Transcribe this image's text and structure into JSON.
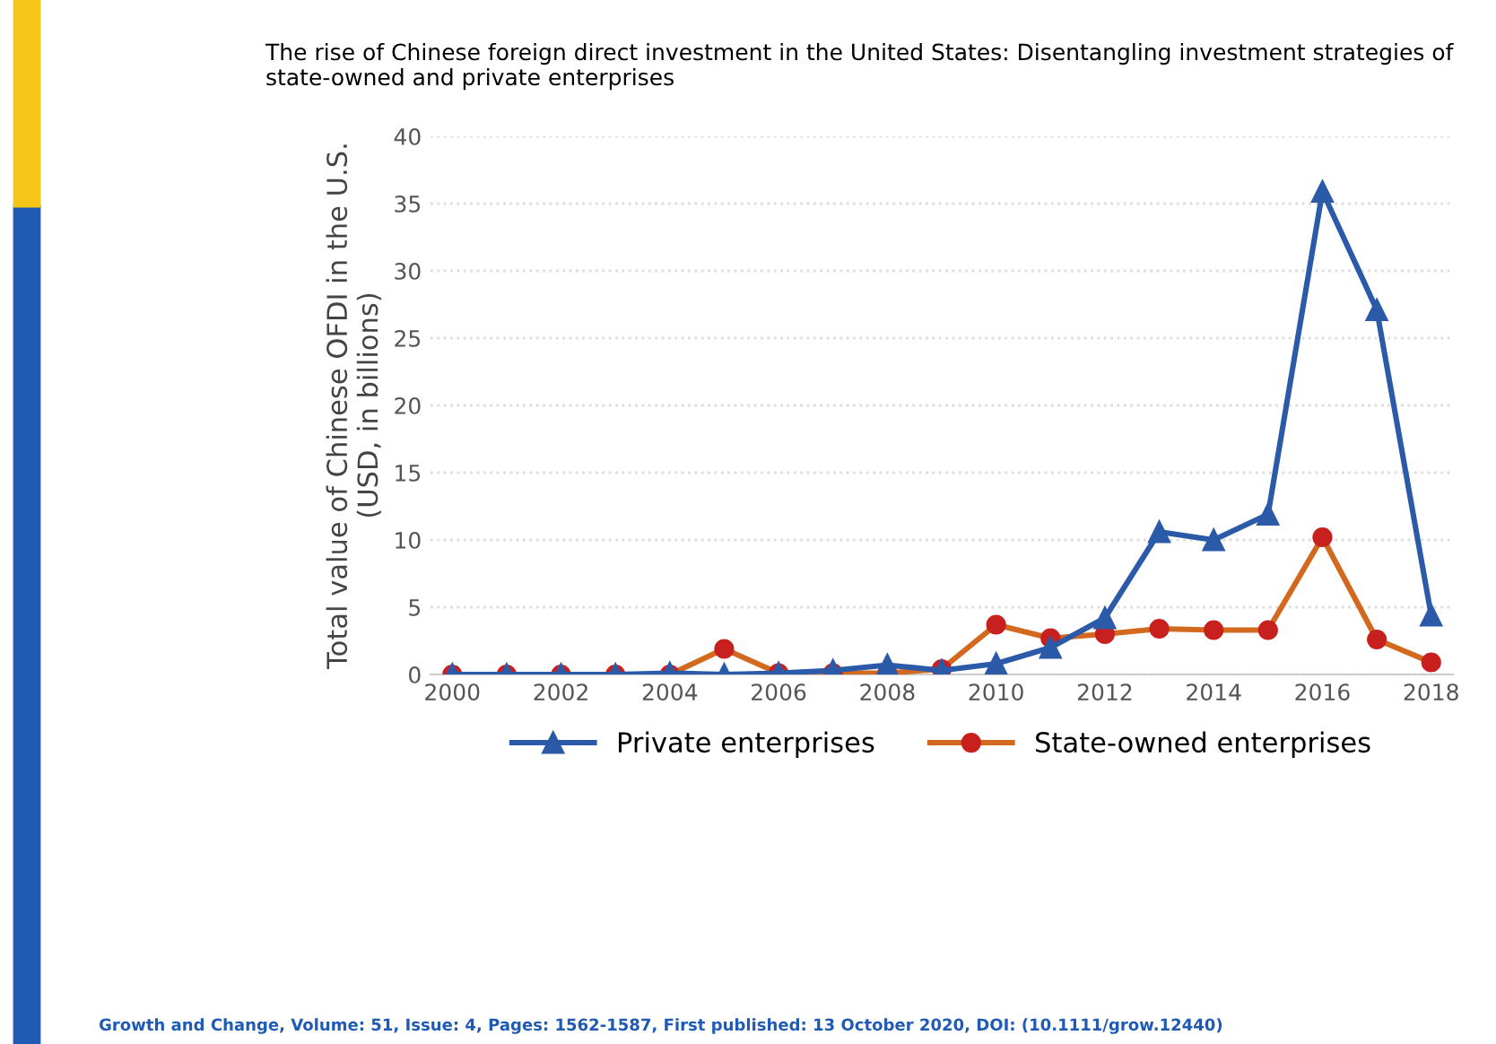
{
  "chart_data": {
    "type": "line",
    "title": "The rise of Chinese foreign direct investment in the United States: Disentangling investment strategies of state-owned and private enterprises",
    "ylabel": "Total value of Chinese OFDI in the U.S.\n(USD, in billions)",
    "x": [
      2000,
      2001,
      2002,
      2003,
      2004,
      2005,
      2006,
      2007,
      2008,
      2009,
      2010,
      2011,
      2012,
      2013,
      2014,
      2015,
      2016,
      2017,
      2018
    ],
    "series": [
      {
        "name": "Private enterprises",
        "color": "#2a5aa8",
        "marker": "triangle",
        "values": [
          0,
          0,
          0,
          0,
          0.1,
          0,
          0.1,
          0.3,
          0.7,
          0.3,
          0.8,
          2.0,
          4.2,
          10.6,
          10.0,
          11.9,
          35.9,
          27.1,
          4.4
        ]
      },
      {
        "name": "State-owned enterprises",
        "color": "#d2691e",
        "marker": "circle",
        "values": [
          0,
          0,
          0,
          0,
          0,
          1.9,
          0.1,
          0.1,
          0.1,
          0.4,
          3.7,
          2.7,
          3.0,
          3.4,
          3.3,
          3.3,
          10.2,
          2.6,
          0.9
        ]
      }
    ],
    "xlim": [
      1999.6,
      2018.4
    ],
    "xticks": [
      2000,
      2002,
      2004,
      2006,
      2008,
      2010,
      2012,
      2014,
      2016,
      2018
    ],
    "ylim": [
      0,
      40
    ],
    "yticks": [
      0,
      5,
      10,
      15,
      20,
      25,
      30,
      35,
      40
    ],
    "grid": "y",
    "legend": "bottom",
    "line_style": "solid",
    "annotations": [
      "Growth and Change, Volume: 51, Issue: 4, Pages: 1562-1587, First published: 13 October 2020, DOI: (10.1111/grow.12440)"
    ]
  }
}
